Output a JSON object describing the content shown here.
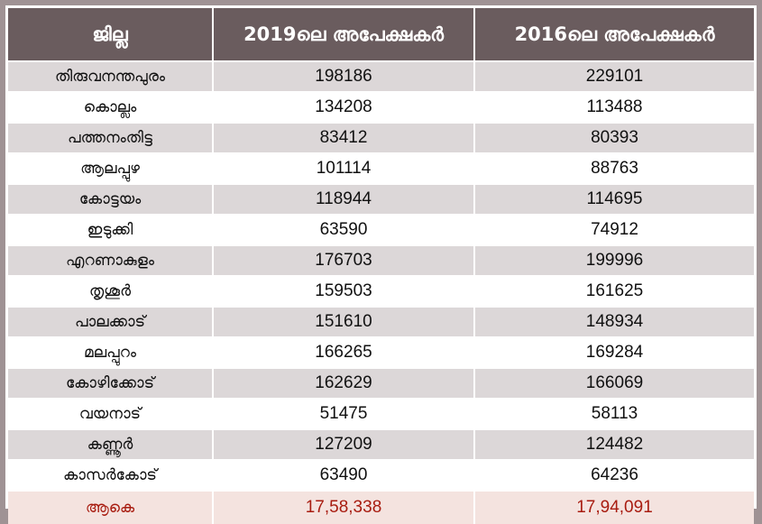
{
  "header": {
    "district": "ജില്ല",
    "col2019": "2019ലെ അപേക്ഷകർ",
    "col2016": "2016ലെ അപേക്ഷകർ"
  },
  "rows": [
    {
      "district": "തിരുവനന്തപുരം",
      "y2019": "198186",
      "y2016": "229101"
    },
    {
      "district": "കൊല്ലം",
      "y2019": "134208",
      "y2016": "113488"
    },
    {
      "district": "പത്തനംതിട്ട",
      "y2019": "83412",
      "y2016": "80393"
    },
    {
      "district": "ആലപ്പുഴ",
      "y2019": "101114",
      "y2016": "88763"
    },
    {
      "district": "കോട്ടയം",
      "y2019": "118944",
      "y2016": "114695"
    },
    {
      "district": "ഇടുക്കി",
      "y2019": "63590",
      "y2016": "74912"
    },
    {
      "district": "എറണാകുളം",
      "y2019": "176703",
      "y2016": "199996"
    },
    {
      "district": "തൃശൂർ",
      "y2019": "159503",
      "y2016": "161625"
    },
    {
      "district": "പാലക്കാട്",
      "y2019": "151610",
      "y2016": "148934"
    },
    {
      "district": "മലപ്പുറം",
      "y2019": "166265",
      "y2016": "169284"
    },
    {
      "district": "കോഴിക്കോട്",
      "y2019": "162629",
      "y2016": "166069"
    },
    {
      "district": "വയനാട്",
      "y2019": "51475",
      "y2016": "58113"
    },
    {
      "district": "കണ്ണൂർ",
      "y2019": "127209",
      "y2016": "124482"
    },
    {
      "district": "കാസർകോട്",
      "y2019": "63490",
      "y2016": "64236"
    }
  ],
  "total": {
    "label": "ആകെ",
    "y2019": "17,58,338",
    "y2016": "17,94,091"
  },
  "colors": {
    "header_bg": "#6a5c5e",
    "frame_bg": "#9f9294",
    "stripe": "#dcd7d8",
    "total_bg": "#f4e3df",
    "total_text": "#a81c10"
  }
}
